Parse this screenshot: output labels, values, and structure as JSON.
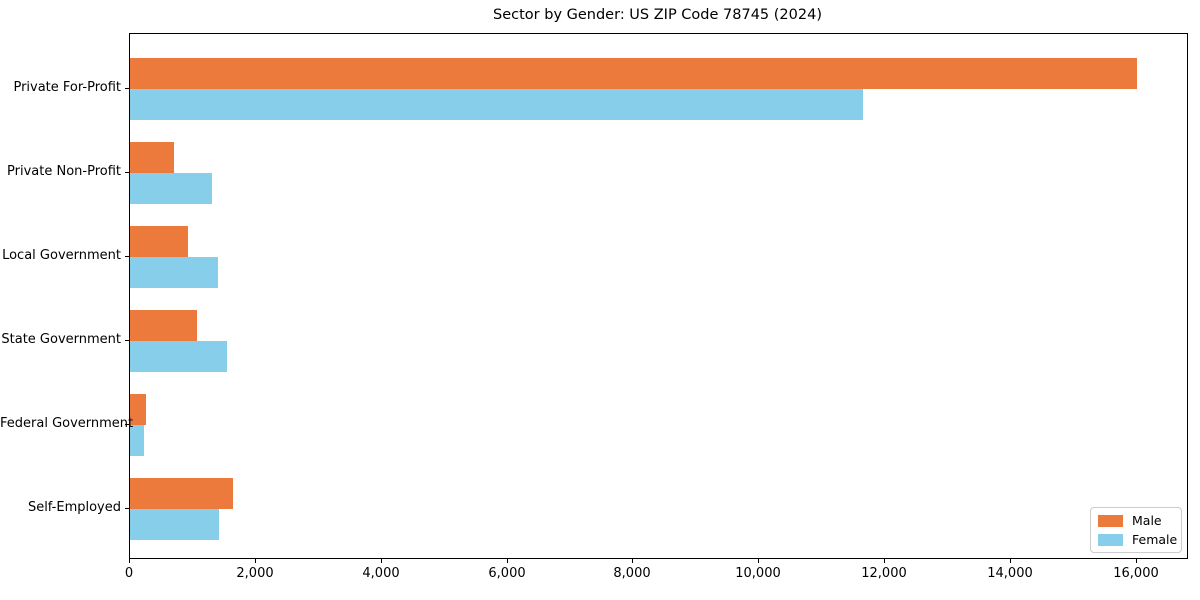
{
  "chart_data": {
    "type": "bar",
    "orientation": "horizontal",
    "title": "Sector by Gender: US ZIP Code 78745 (2024)",
    "categories": [
      "Private For-Profit",
      "Private Non-Profit",
      "Local Government",
      "State Government",
      "Federal Government",
      "Self-Employed"
    ],
    "series": [
      {
        "name": "Male",
        "color": "#EC7A3C",
        "values": [
          16000,
          700,
          920,
          1060,
          250,
          1640
        ]
      },
      {
        "name": "Female",
        "color": "#87CEEB",
        "values": [
          11650,
          1300,
          1400,
          1540,
          230,
          1410
        ]
      }
    ],
    "xlabel": "",
    "ylabel": "",
    "xlim": [
      0,
      16800
    ],
    "x_ticks": [
      0,
      2000,
      4000,
      6000,
      8000,
      10000,
      12000,
      14000,
      16000
    ],
    "x_tick_labels": [
      "0",
      "2,000",
      "4,000",
      "6,000",
      "8,000",
      "10,000",
      "12,000",
      "14,000",
      "16,000"
    ],
    "grid": false,
    "legend_position": "lower right",
    "colors": {
      "male": "#EC7A3C",
      "female": "#87CEEB",
      "axis": "#000000",
      "legend_border": "#cccccc",
      "background": "#ffffff"
    }
  }
}
